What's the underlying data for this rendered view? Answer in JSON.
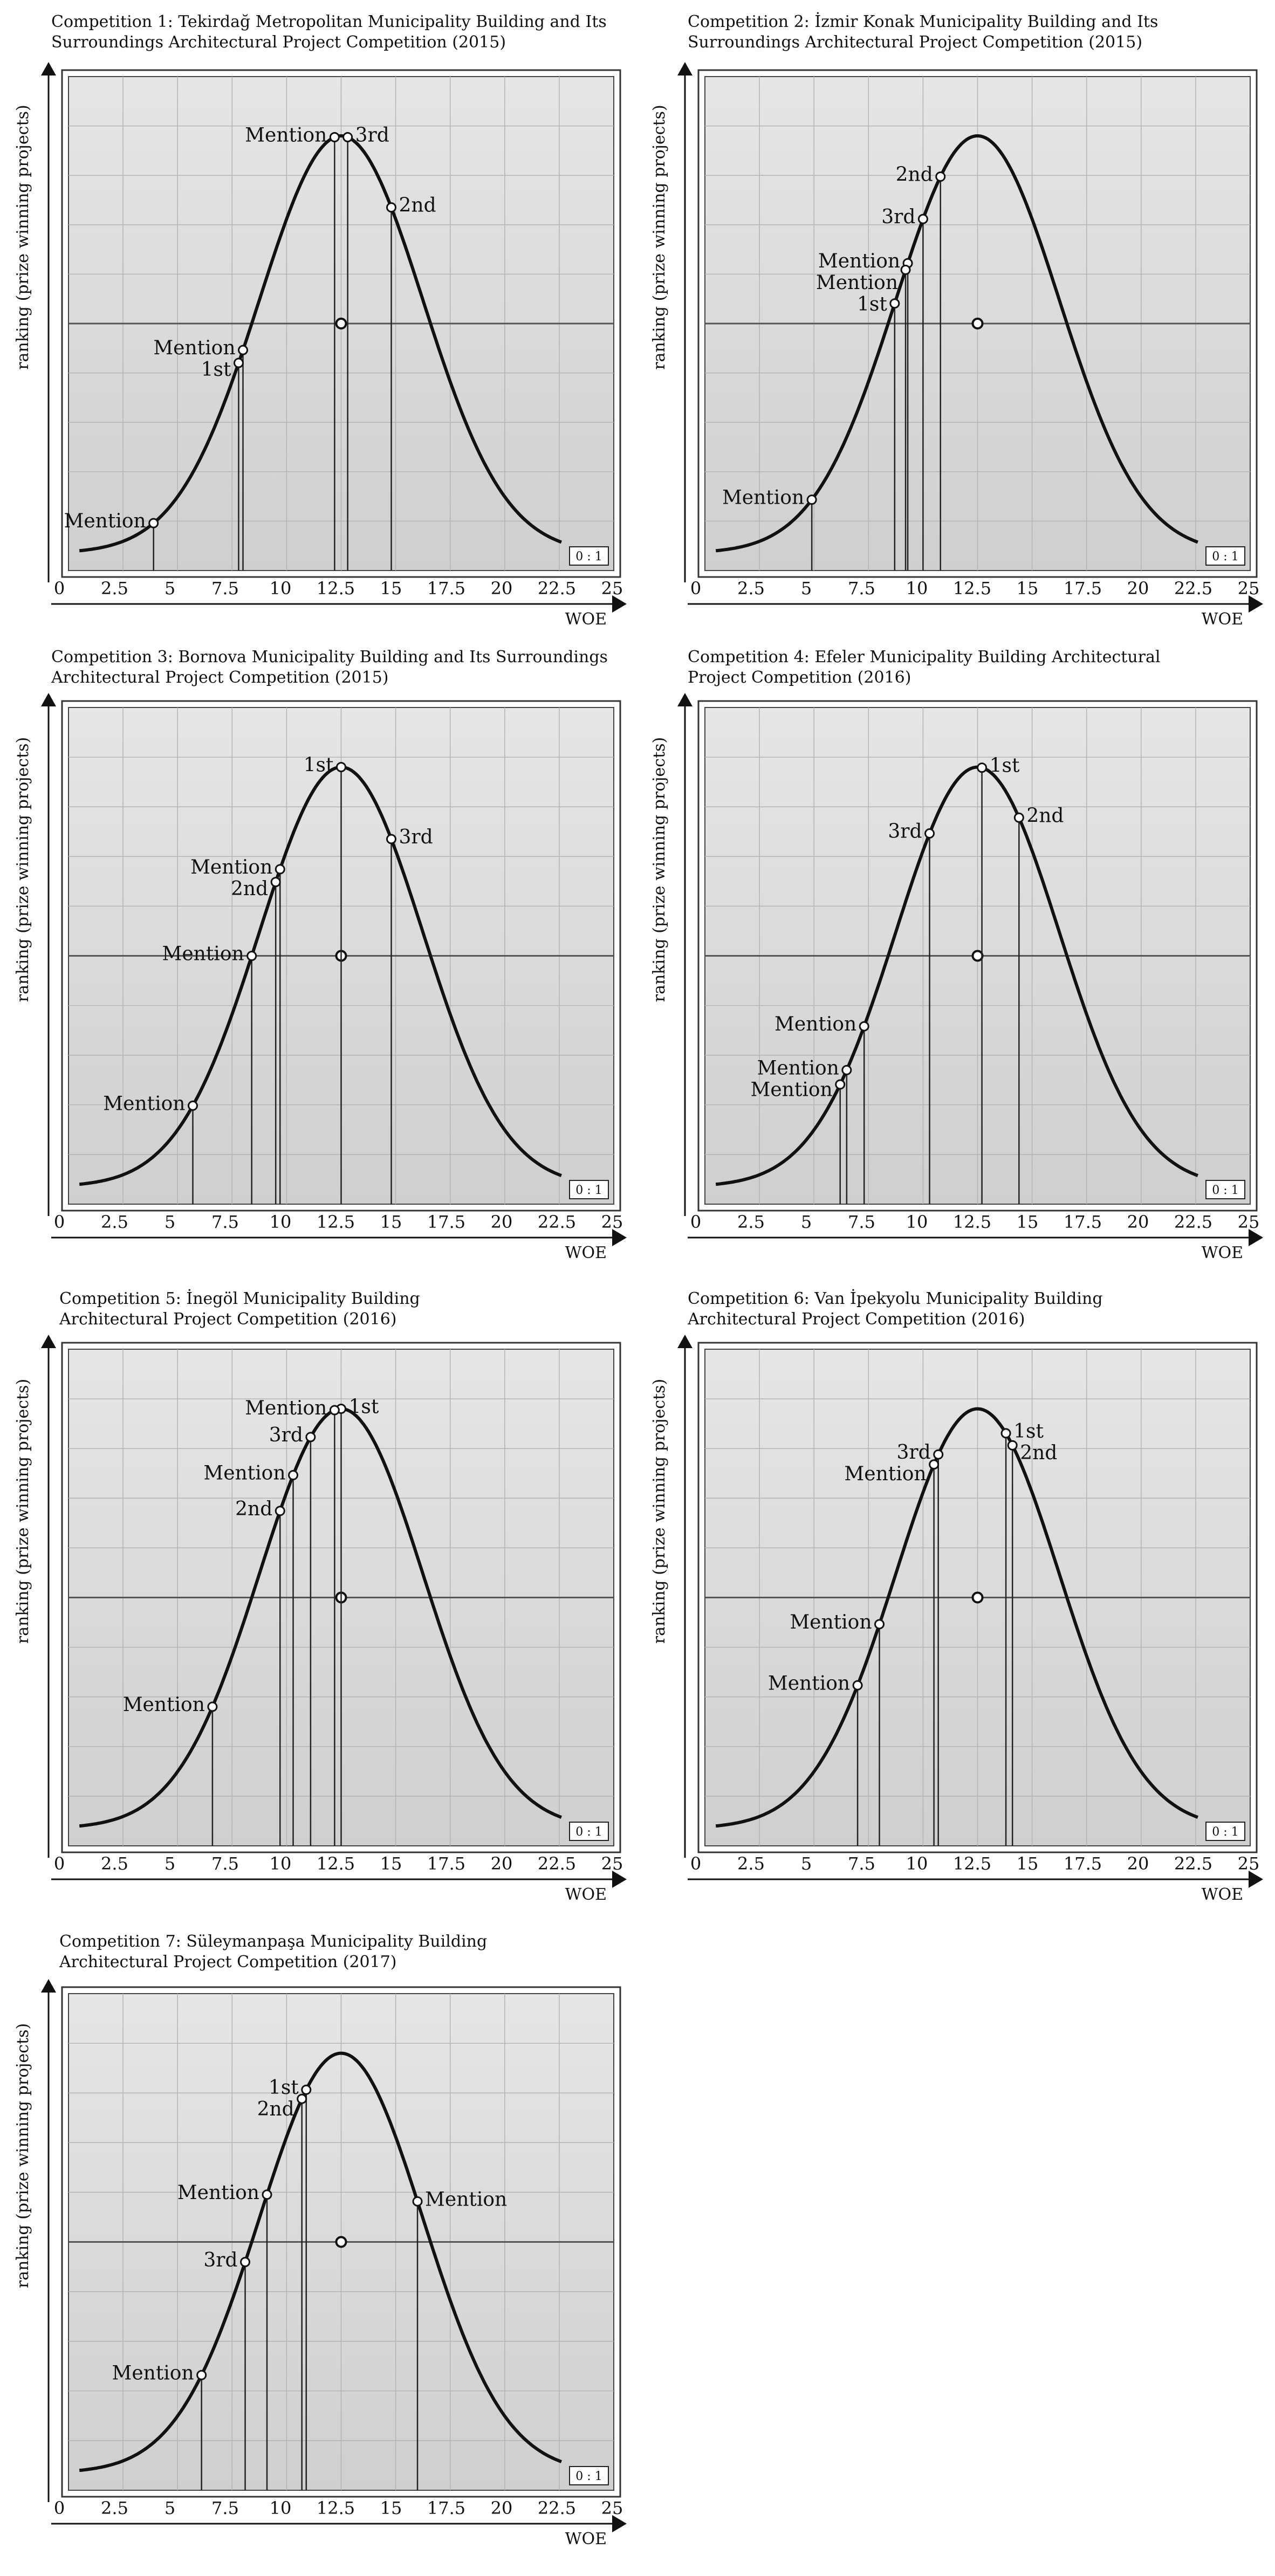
{
  "common": {
    "ylabel": "ranking (prize winning projects)",
    "xlabel": "WOE",
    "ratio_badge": "0 : 1",
    "xticks": [
      "0",
      "2.5",
      "5",
      "7.5",
      "10",
      "12.5",
      "15",
      "17.5",
      "20",
      "22.5",
      "25"
    ]
  },
  "chart_data": [
    {
      "type": "line",
      "title_line1": "Competition 1: Tekirdağ Metropolitan Municipality Building and Its",
      "title_line2": "Surroundings Architectural Project Competition (2015)",
      "xlabel": "WOE",
      "ylabel": "ranking (prize winning projects)",
      "xlim": [
        0,
        25
      ],
      "curve": {
        "mean": 12.5,
        "sd": 3.75
      },
      "points": [
        {
          "label": "Mention",
          "x": 12.2,
          "side": "left"
        },
        {
          "label": "3rd",
          "x": 12.8,
          "side": "right"
        },
        {
          "label": "2nd",
          "x": 14.8,
          "side": "right"
        },
        {
          "label": "Mention",
          "x": 8.0,
          "side": "left"
        },
        {
          "label": "1st",
          "x": 7.8,
          "side": "left"
        },
        {
          "label": "Mention",
          "x": 3.9,
          "side": "left"
        }
      ]
    },
    {
      "type": "line",
      "title_line1": "Competition 2:  İzmir Konak Municipality Building and Its",
      "title_line2": "Surroundings Architectural Project Competition (2015)",
      "xlabel": "WOE",
      "ylabel": "ranking (prize winning projects)",
      "xlim": [
        0,
        25
      ],
      "curve": {
        "mean": 12.5,
        "sd": 3.75
      },
      "points": [
        {
          "label": "2nd",
          "x": 10.8,
          "side": "left"
        },
        {
          "label": "3rd",
          "x": 10.0,
          "side": "left"
        },
        {
          "label": "Mention",
          "x": 9.3,
          "side": "left"
        },
        {
          "label": "Mention",
          "x": 9.2,
          "side": "left"
        },
        {
          "label": "1st",
          "x": 8.7,
          "side": "left"
        },
        {
          "label": "Mention",
          "x": 4.9,
          "side": "left"
        }
      ]
    },
    {
      "type": "line",
      "title_line1": "Competition 3: Bornova Municipality Building and Its Surroundings",
      "title_line2": "Architectural Project Competition (2015)",
      "xlabel": "WOE",
      "ylabel": "ranking (prize winning projects)",
      "xlim": [
        0,
        25
      ],
      "curve": {
        "mean": 12.5,
        "sd": 3.75
      },
      "points": [
        {
          "label": "1st",
          "x": 12.5,
          "side": "left"
        },
        {
          "label": "3rd",
          "x": 14.8,
          "side": "right"
        },
        {
          "label": "Mention",
          "x": 9.7,
          "side": "left"
        },
        {
          "label": "2nd",
          "x": 9.5,
          "side": "left"
        },
        {
          "label": "Mention",
          "x": 8.4,
          "side": "left"
        },
        {
          "label": "Mention",
          "x": 5.7,
          "side": "left"
        }
      ]
    },
    {
      "type": "line",
      "title_line1": "Competition 4: Efeler Municipality Building Architectural",
      "title_line2": "Project Competition (2016)",
      "xlabel": "WOE",
      "ylabel": "ranking (prize winning projects)",
      "xlim": [
        0,
        25
      ],
      "curve": {
        "mean": 12.5,
        "sd": 3.75
      },
      "points": [
        {
          "label": "1st",
          "x": 12.7,
          "side": "right"
        },
        {
          "label": "3rd",
          "x": 10.3,
          "side": "left"
        },
        {
          "label": "2nd",
          "x": 14.4,
          "side": "right"
        },
        {
          "label": "Mention",
          "x": 7.3,
          "side": "left"
        },
        {
          "label": "Mention",
          "x": 6.5,
          "side": "left"
        },
        {
          "label": "Mention",
          "x": 6.2,
          "side": "left"
        }
      ]
    },
    {
      "type": "line",
      "title_line1": "Competition 5: İnegöl Municipality Building",
      "title_line2": "Architectural Project Competition (2016)",
      "xlabel": "WOE",
      "ylabel": "ranking (prize winning projects)",
      "xlim": [
        0,
        25
      ],
      "curve": {
        "mean": 12.5,
        "sd": 3.75
      },
      "points": [
        {
          "label": "Mention",
          "x": 12.2,
          "side": "left"
        },
        {
          "label": "1st",
          "x": 12.5,
          "side": "right"
        },
        {
          "label": "3rd",
          "x": 11.1,
          "side": "left"
        },
        {
          "label": "Mention",
          "x": 10.3,
          "side": "left"
        },
        {
          "label": "2nd",
          "x": 9.7,
          "side": "left"
        },
        {
          "label": "Mention",
          "x": 6.6,
          "side": "left"
        }
      ]
    },
    {
      "type": "line",
      "title_line1": "Competition 6: Van İpekyolu Municipality Building",
      "title_line2": "Architectural Project Competition (2016)",
      "xlabel": "WOE",
      "ylabel": "ranking (prize winning projects)",
      "xlim": [
        0,
        25
      ],
      "curve": {
        "mean": 12.5,
        "sd": 3.75
      },
      "points": [
        {
          "label": "3rd",
          "x": 10.7,
          "side": "left"
        },
        {
          "label": "Mention",
          "x": 10.5,
          "side": "left"
        },
        {
          "label": "1st",
          "x": 13.8,
          "side": "right"
        },
        {
          "label": "2nd",
          "x": 14.1,
          "side": "right"
        },
        {
          "label": "Mention",
          "x": 8.0,
          "side": "left"
        },
        {
          "label": "Mention",
          "x": 7.0,
          "side": "left"
        }
      ]
    },
    {
      "type": "line",
      "title_line1": "Competition 7: Süleymanpaşa Municipality Building",
      "title_line2": "Architectural Project Competition (2017)",
      "xlabel": "WOE",
      "ylabel": "ranking (prize winning projects)",
      "xlim": [
        0,
        25
      ],
      "curve": {
        "mean": 12.5,
        "sd": 3.75
      },
      "points": [
        {
          "label": "1st",
          "x": 10.9,
          "side": "left"
        },
        {
          "label": "2nd",
          "x": 10.7,
          "side": "left"
        },
        {
          "label": "Mention",
          "x": 9.1,
          "side": "left"
        },
        {
          "label": "Mention",
          "x": 16.0,
          "side": "right"
        },
        {
          "label": "3rd",
          "x": 8.1,
          "side": "left"
        },
        {
          "label": "Mention",
          "x": 6.1,
          "side": "left"
        }
      ]
    }
  ]
}
